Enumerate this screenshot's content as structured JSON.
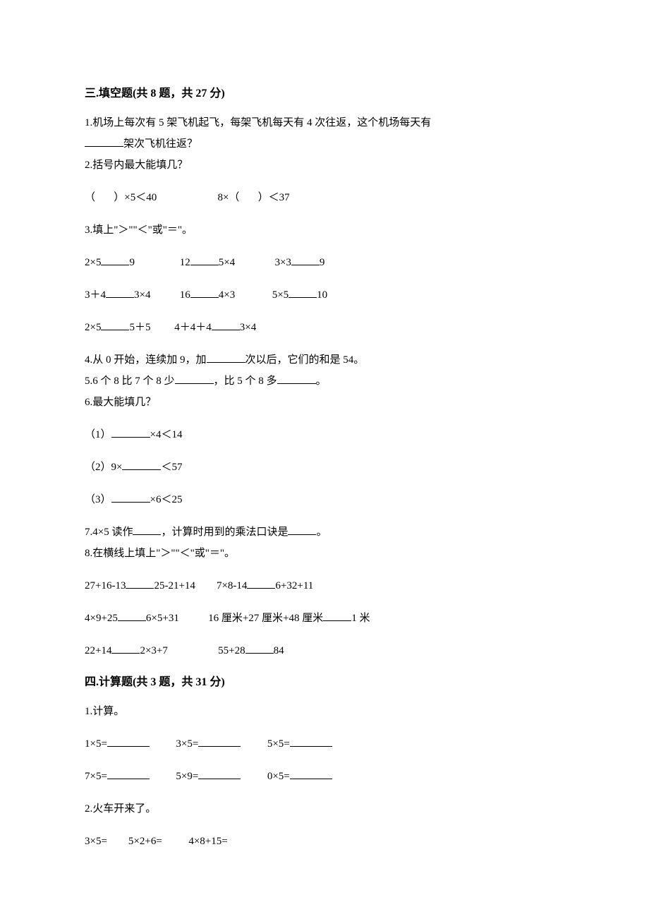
{
  "section3": {
    "title": "三.填空题(共 8 题，共 27 分)",
    "q1_a": "1.机场上每次有 5 架飞机起飞，每架飞机每天有 4 次往返，这个机场每天有",
    "q1_b": "架次飞机往返？",
    "q2": "2.括号内最大能填几？",
    "q2_r1_a": "（       ）×5＜40",
    "q2_r1_b": "8×（       ）＜37",
    "q3": "3.填上\"＞\"\"＜\"或\"＝\"。",
    "q3_r1_a": "2×5",
    "q3_r1_b": "9",
    "q3_r1_c": "12",
    "q3_r1_d": "5×4",
    "q3_r1_e": "3×3",
    "q3_r1_f": "9",
    "q3_r2_a": "3＋4",
    "q3_r2_b": "3×4",
    "q3_r2_c": "16",
    "q3_r2_d": "4×3",
    "q3_r2_e": "5×5",
    "q3_r2_f": "10",
    "q3_r3_a": "2×5",
    "q3_r3_b": "5＋5",
    "q3_r3_c": "4＋4＋4",
    "q3_r3_d": "3×4",
    "q4_a": "4.从 0 开始，连续加 9，加",
    "q4_b": "次以后，它们的和是 54。",
    "q5_a": "5.6 个 8 比 7 个 8 少",
    "q5_b": "，比 5 个 8 多",
    "q5_c": "。",
    "q6": "6.最大能填几？",
    "q6_1a": "（1）",
    "q6_1b": "×4＜14",
    "q6_2a": "（2）9×",
    "q6_2b": "＜57",
    "q6_3a": "（3）",
    "q6_3b": "×6＜25",
    "q7_a": "7.4×5 读作",
    "q7_b": "，计算时用到的乘法口诀是",
    "q7_c": "。",
    "q8": "8.在横线上填上\"＞\"\"＜\"或\"＝\"。",
    "q8_r1_a": "27+16-13",
    "q8_r1_b": "25-21+14",
    "q8_r1_c": "7×8-14",
    "q8_r1_d": "6+32+11",
    "q8_r2_a": "4×9+25",
    "q8_r2_b": "6×5+31",
    "q8_r2_c": "16 厘米+27 厘米+48 厘米",
    "q8_r2_d": "1 米",
    "q8_r3_a": "22+14",
    "q8_r3_b": "2×3+7",
    "q8_r3_c": "55+28",
    "q8_r3_d": "84"
  },
  "section4": {
    "title": "四.计算题(共 3 题，共 31 分)",
    "q1": "1.计算。",
    "q1_r1_a": "1×5=",
    "q1_r1_b": "3×5=",
    "q1_r1_c": "5×5=",
    "q1_r2_a": "7×5=",
    "q1_r2_b": "5×9=",
    "q1_r2_c": "0×5=",
    "q2": "2.火车开来了。",
    "q2_r1_a": "3×5=",
    "q2_r1_b": "5×2+6=",
    "q2_r1_c": "4×8+15="
  },
  "style": {
    "text_color": "#000000",
    "bg_color": "#ffffff",
    "heading_fontsize": 16,
    "body_fontsize": 15,
    "blank_underline_color": "#000000"
  }
}
